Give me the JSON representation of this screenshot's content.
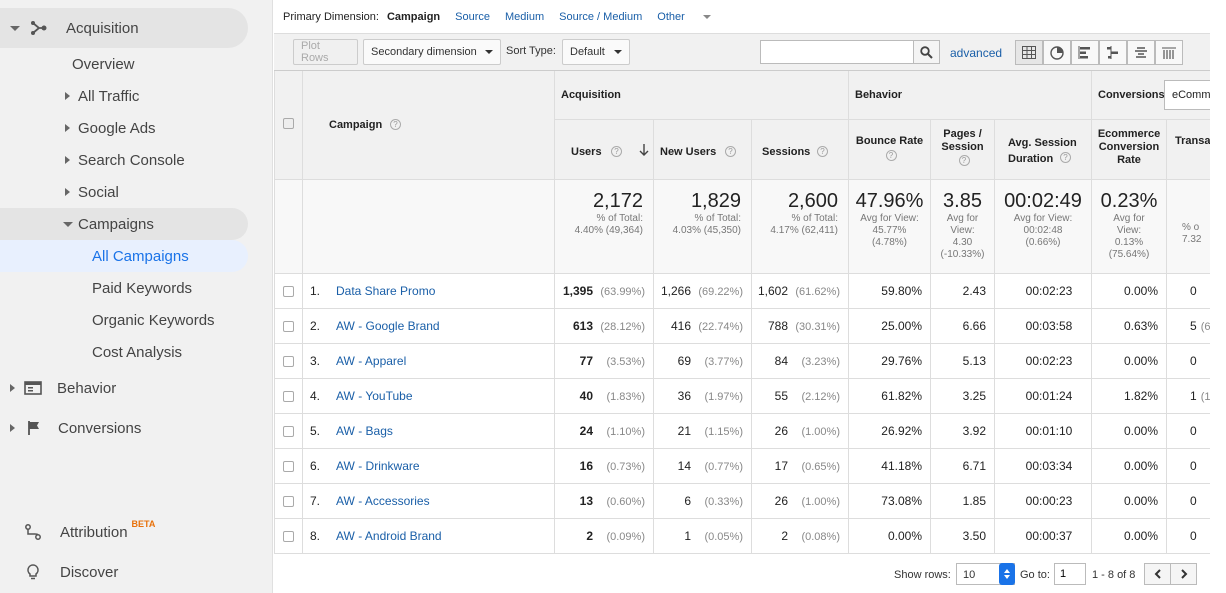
{
  "sidebar": {
    "acquisition": "Acquisition",
    "overview": "Overview",
    "all_traffic": "All Traffic",
    "google_ads": "Google Ads",
    "search_console": "Search Console",
    "social": "Social",
    "campaigns": "Campaigns",
    "all_campaigns": "All Campaigns",
    "paid_keywords": "Paid Keywords",
    "organic_keywords": "Organic Keywords",
    "cost_analysis": "Cost Analysis",
    "behavior": "Behavior",
    "conversions": "Conversions",
    "attribution": "Attribution",
    "beta": "BETA",
    "discover": "Discover"
  },
  "dimbar": {
    "label": "Primary Dimension:",
    "active": "Campaign",
    "source": "Source",
    "medium": "Medium",
    "source_medium": "Source / Medium",
    "other": "Other"
  },
  "toolbar": {
    "plot_rows": "Plot Rows",
    "secondary_dimension": "Secondary dimension",
    "sort_type_label": "Sort Type:",
    "sort_type_value": "Default",
    "search_value": "",
    "advanced": "advanced"
  },
  "headers": {
    "campaign": "Campaign",
    "acquisition": "Acquisition",
    "behavior": "Behavior",
    "conversions": "Conversions",
    "conversion_select": "eComm",
    "users": "Users",
    "new_users": "New Users",
    "sessions": "Sessions",
    "bounce_rate": "Bounce Rate",
    "pages_session": "Pages / Session",
    "avg_session_duration": "Avg. Session Duration",
    "ecommerce_conversion_rate": "Ecommerce Conversion Rate",
    "transactions": "Transa"
  },
  "totals": {
    "users": {
      "value": "2,172",
      "l1": "% of Total:",
      "l2": "4.40% (49,364)"
    },
    "new_users": {
      "value": "1,829",
      "l1": "% of Total:",
      "l2": "4.03% (45,350)"
    },
    "sessions": {
      "value": "2,600",
      "l1": "% of Total:",
      "l2": "4.17% (62,411)"
    },
    "bounce_rate": {
      "value": "47.96%",
      "l1": "Avg for View:",
      "l2": "45.77%",
      "l3": "(4.78%)"
    },
    "pages_session": {
      "value": "3.85",
      "l1": "Avg for",
      "l2": "View:",
      "l3": "4.30",
      "l4": "(-10.33%)"
    },
    "avg_session_duration": {
      "value": "00:02:49",
      "l1": "Avg for View:",
      "l2": "00:02:48",
      "l3": "(0.66%)"
    },
    "ecommerce_conversion_rate": {
      "value": "0.23%",
      "l1": "Avg for",
      "l2": "View:",
      "l3": "0.13%",
      "l4": "(75.64%)"
    },
    "transactions": {
      "l1": "% o",
      "l2": "7.32"
    }
  },
  "rows": [
    {
      "idx": "1.",
      "campaign": "Data Share Promo",
      "users": "1,395",
      "users_pct": "(63.99%)",
      "new_users": "1,266",
      "new_users_pct": "(69.22%)",
      "sessions": "1,602",
      "sessions_pct": "(61.62%)",
      "bounce": "59.80%",
      "pages": "2.43",
      "duration": "00:02:23",
      "conv": "0.00%",
      "trans": "0",
      "trans_pct": ""
    },
    {
      "idx": "2.",
      "campaign": "AW - Google Brand",
      "users": "613",
      "users_pct": "(28.12%)",
      "new_users": "416",
      "new_users_pct": "(22.74%)",
      "sessions": "788",
      "sessions_pct": "(30.31%)",
      "bounce": "25.00%",
      "pages": "6.66",
      "duration": "00:03:58",
      "conv": "0.63%",
      "trans": "5",
      "trans_pct": "(6"
    },
    {
      "idx": "3.",
      "campaign": "AW - Apparel",
      "users": "77",
      "users_pct": "(3.53%)",
      "new_users": "69",
      "new_users_pct": "(3.77%)",
      "sessions": "84",
      "sessions_pct": "(3.23%)",
      "bounce": "29.76%",
      "pages": "5.13",
      "duration": "00:02:23",
      "conv": "0.00%",
      "trans": "0",
      "trans_pct": ""
    },
    {
      "idx": "4.",
      "campaign": "AW - YouTube",
      "users": "40",
      "users_pct": "(1.83%)",
      "new_users": "36",
      "new_users_pct": "(1.97%)",
      "sessions": "55",
      "sessions_pct": "(2.12%)",
      "bounce": "61.82%",
      "pages": "3.25",
      "duration": "00:01:24",
      "conv": "1.82%",
      "trans": "1",
      "trans_pct": "(1"
    },
    {
      "idx": "5.",
      "campaign": "AW - Bags",
      "users": "24",
      "users_pct": "(1.10%)",
      "new_users": "21",
      "new_users_pct": "(1.15%)",
      "sessions": "26",
      "sessions_pct": "(1.00%)",
      "bounce": "26.92%",
      "pages": "3.92",
      "duration": "00:01:10",
      "conv": "0.00%",
      "trans": "0",
      "trans_pct": ""
    },
    {
      "idx": "6.",
      "campaign": "AW - Drinkware",
      "users": "16",
      "users_pct": "(0.73%)",
      "new_users": "14",
      "new_users_pct": "(0.77%)",
      "sessions": "17",
      "sessions_pct": "(0.65%)",
      "bounce": "41.18%",
      "pages": "6.71",
      "duration": "00:03:34",
      "conv": "0.00%",
      "trans": "0",
      "trans_pct": ""
    },
    {
      "idx": "7.",
      "campaign": "AW - Accessories",
      "users": "13",
      "users_pct": "(0.60%)",
      "new_users": "6",
      "new_users_pct": "(0.33%)",
      "sessions": "26",
      "sessions_pct": "(1.00%)",
      "bounce": "73.08%",
      "pages": "1.85",
      "duration": "00:00:23",
      "conv": "0.00%",
      "trans": "0",
      "trans_pct": ""
    },
    {
      "idx": "8.",
      "campaign": "AW - Android Brand",
      "users": "2",
      "users_pct": "(0.09%)",
      "new_users": "1",
      "new_users_pct": "(0.05%)",
      "sessions": "2",
      "sessions_pct": "(0.08%)",
      "bounce": "0.00%",
      "pages": "3.50",
      "duration": "00:00:37",
      "conv": "0.00%",
      "trans": "0",
      "trans_pct": ""
    }
  ],
  "footer": {
    "show_rows_label": "Show rows:",
    "show_rows_value": "10",
    "goto_label": "Go to:",
    "goto_value": "1",
    "range": "1 - 8 of 8"
  },
  "colors": {
    "link": "#1a5fa8",
    "sidebar_bg": "#f1f1f1",
    "selected": "#e8f0fe",
    "accent": "#1a73e8",
    "beta": "#e8710a"
  }
}
